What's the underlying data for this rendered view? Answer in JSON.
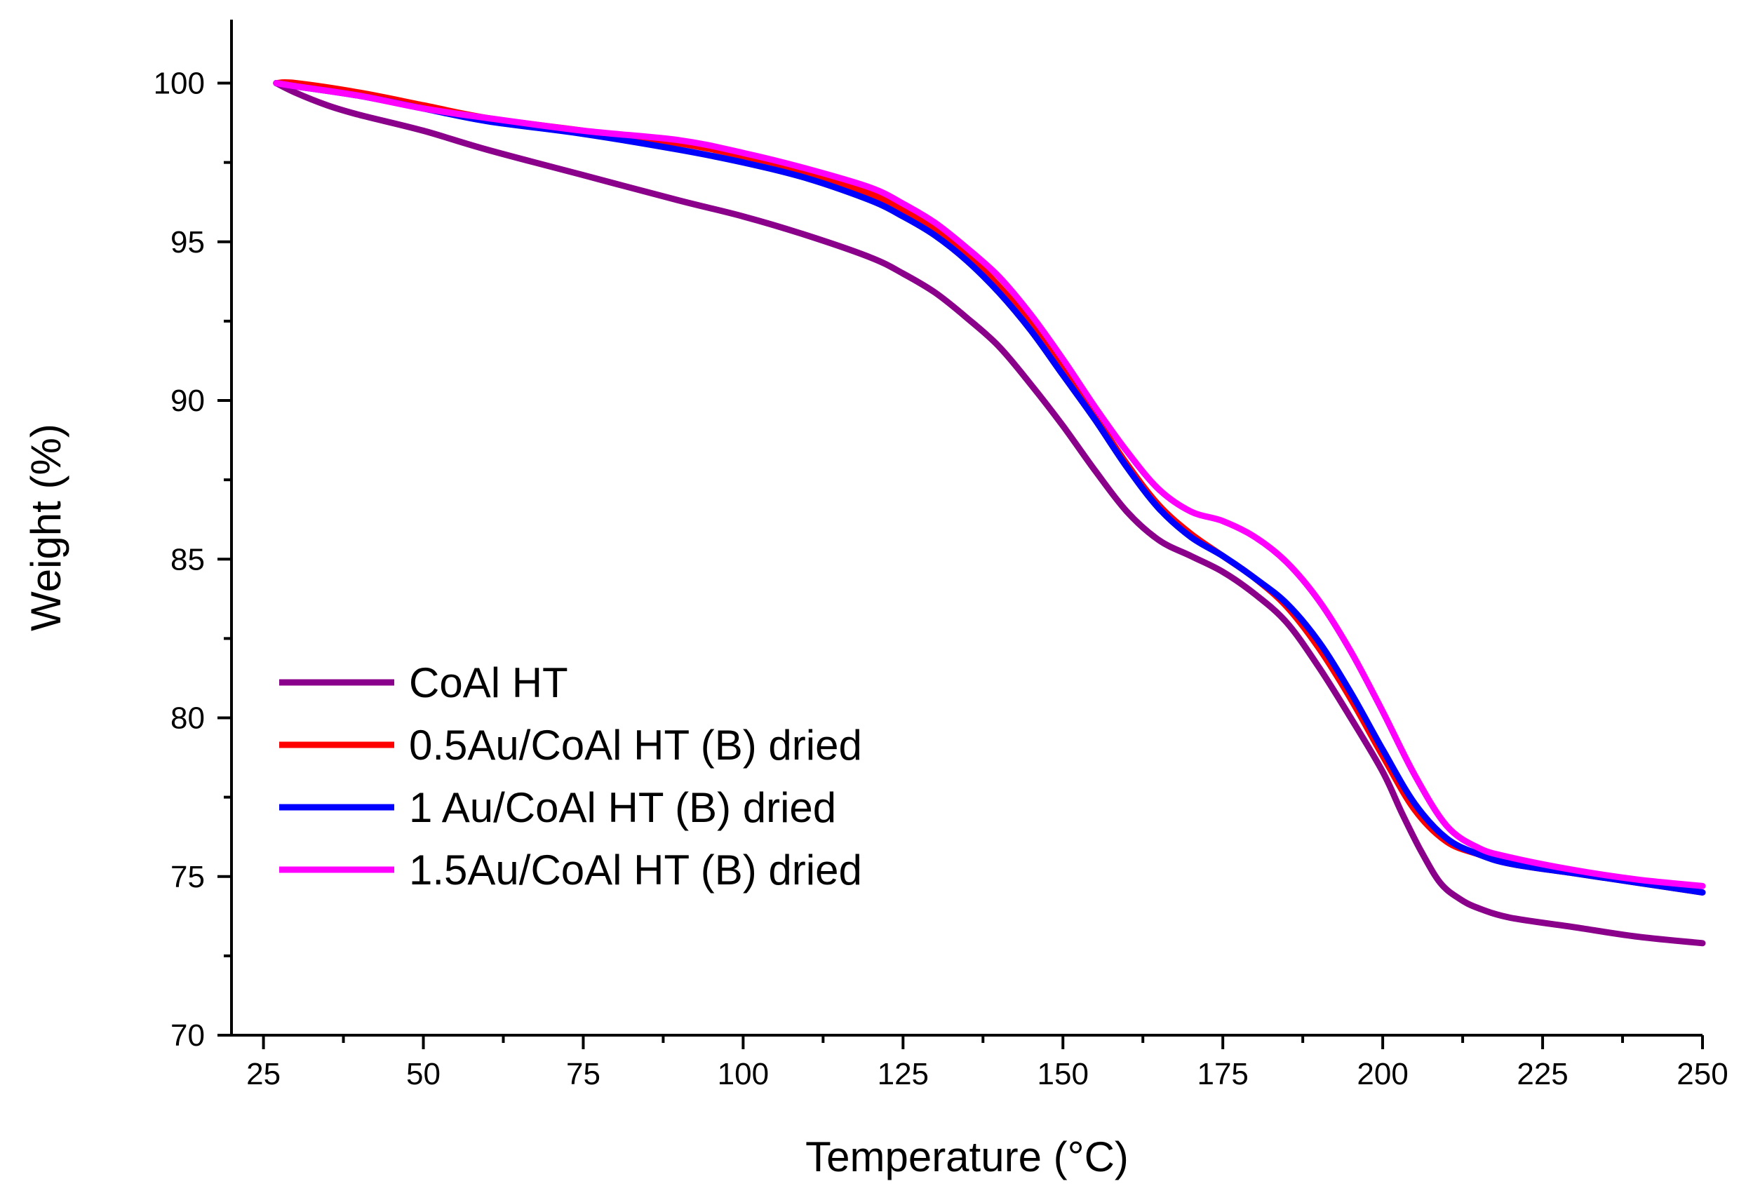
{
  "chart_data": {
    "type": "line",
    "title": "",
    "xlabel": "Temperature (°C)",
    "ylabel": "Weight (%)",
    "xlim": [
      20,
      250
    ],
    "ylim": [
      70,
      102
    ],
    "x_ticks": [
      25,
      50,
      75,
      100,
      125,
      150,
      175,
      200,
      225,
      250
    ],
    "x_tick_labels": [
      "25",
      "50",
      "75",
      "100",
      "125",
      "150",
      "175",
      "200",
      "225",
      "250"
    ],
    "y_ticks": [
      70,
      75,
      80,
      85,
      90,
      95,
      100
    ],
    "y_tick_labels": [
      "70",
      "75",
      "80",
      "85",
      "90",
      "95",
      "100"
    ],
    "grid": false,
    "legend_position": "lower-left",
    "series": [
      {
        "name": "CoAl HT",
        "color": "#8B008B",
        "x": [
          27,
          30,
          35,
          40,
          50,
          60,
          75,
          90,
          100,
          110,
          120,
          125,
          130,
          135,
          140,
          145,
          150,
          155,
          160,
          165,
          170,
          175,
          180,
          185,
          190,
          195,
          200,
          203,
          206,
          209,
          212,
          215,
          220,
          230,
          240,
          250
        ],
        "y": [
          100.0,
          99.7,
          99.3,
          99.0,
          98.5,
          97.9,
          97.1,
          96.3,
          95.8,
          95.2,
          94.5,
          94.0,
          93.4,
          92.6,
          91.7,
          90.5,
          89.2,
          87.8,
          86.5,
          85.6,
          85.1,
          84.6,
          83.9,
          83.0,
          81.6,
          80.0,
          78.3,
          77.0,
          75.8,
          74.8,
          74.3,
          74.0,
          73.7,
          73.4,
          73.1,
          72.9
        ]
      },
      {
        "name": "0.5Au/CoAl HT (B) dried",
        "color": "#FF0000",
        "x": [
          27,
          30,
          40,
          50,
          60,
          75,
          90,
          100,
          110,
          120,
          125,
          130,
          135,
          140,
          145,
          150,
          155,
          160,
          165,
          170,
          175,
          180,
          185,
          190,
          195,
          200,
          205,
          210,
          215,
          220,
          230,
          240,
          250
        ],
        "y": [
          100.0,
          100.0,
          99.7,
          99.3,
          98.9,
          98.5,
          98.1,
          97.7,
          97.2,
          96.5,
          96.0,
          95.4,
          94.6,
          93.6,
          92.4,
          91.0,
          89.5,
          88.0,
          86.7,
          85.8,
          85.1,
          84.4,
          83.5,
          82.2,
          80.6,
          78.8,
          77.1,
          76.1,
          75.7,
          75.4,
          75.1,
          74.8,
          74.5
        ]
      },
      {
        "name": "1 Au/CoAl HT (B) dried",
        "color": "#0000FF",
        "x": [
          27,
          30,
          40,
          50,
          60,
          75,
          90,
          100,
          110,
          120,
          125,
          130,
          135,
          140,
          145,
          150,
          155,
          160,
          165,
          170,
          175,
          180,
          185,
          190,
          195,
          200,
          205,
          210,
          215,
          220,
          230,
          240,
          250
        ],
        "y": [
          100.0,
          99.9,
          99.6,
          99.2,
          98.8,
          98.4,
          97.9,
          97.5,
          97.0,
          96.3,
          95.8,
          95.2,
          94.4,
          93.4,
          92.2,
          90.8,
          89.4,
          87.9,
          86.6,
          85.7,
          85.1,
          84.4,
          83.6,
          82.4,
          80.8,
          79.0,
          77.3,
          76.2,
          75.7,
          75.4,
          75.1,
          74.8,
          74.5
        ]
      },
      {
        "name": "1.5Au/CoAl HT (B) dried",
        "color": "#FF00FF",
        "x": [
          27,
          30,
          40,
          50,
          60,
          75,
          90,
          100,
          110,
          120,
          125,
          130,
          135,
          140,
          145,
          150,
          155,
          160,
          165,
          170,
          175,
          180,
          185,
          190,
          195,
          200,
          205,
          210,
          215,
          220,
          230,
          240,
          250
        ],
        "y": [
          100.0,
          99.9,
          99.6,
          99.2,
          98.9,
          98.5,
          98.2,
          97.8,
          97.3,
          96.7,
          96.2,
          95.6,
          94.8,
          93.9,
          92.7,
          91.3,
          89.8,
          88.4,
          87.2,
          86.5,
          86.2,
          85.7,
          84.9,
          83.7,
          82.1,
          80.2,
          78.2,
          76.6,
          75.9,
          75.6,
          75.2,
          74.9,
          74.7
        ]
      }
    ]
  }
}
